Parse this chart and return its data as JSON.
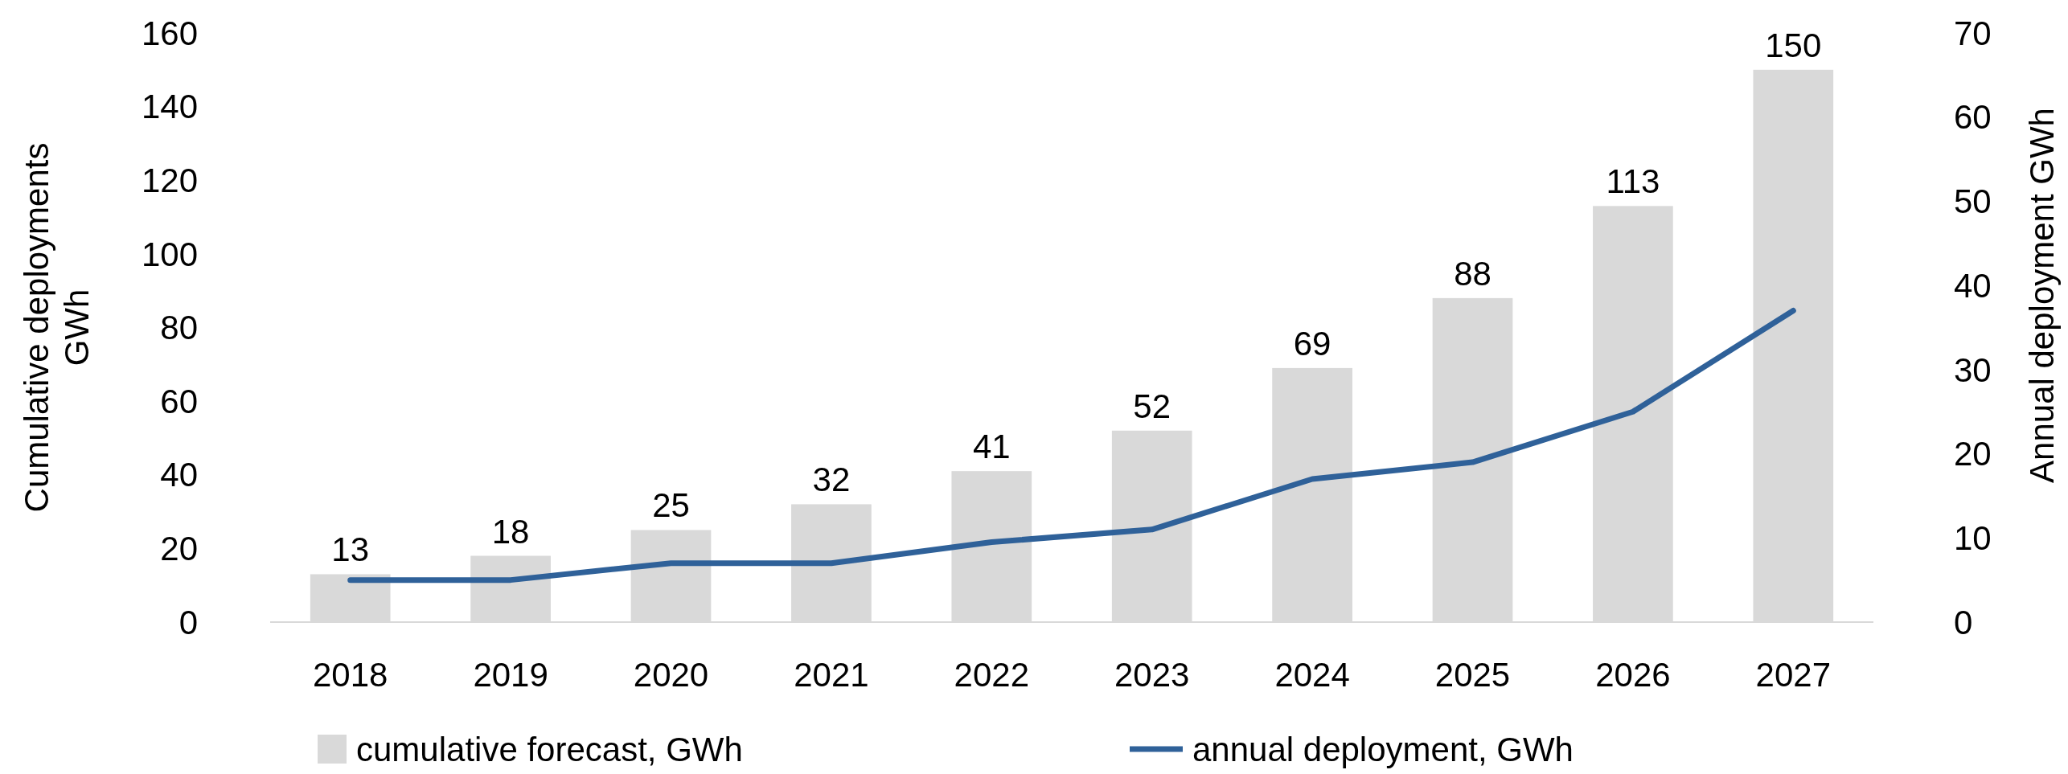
{
  "chart_data": {
    "type": "bar",
    "categories": [
      "2018",
      "2019",
      "2020",
      "2021",
      "2022",
      "2023",
      "2024",
      "2025",
      "2026",
      "2027"
    ],
    "ylabel": "Cumulative deployments GWh",
    "y2label": "Annual deployment GWh",
    "ylim": [
      0,
      160
    ],
    "yticks": [
      0,
      20,
      40,
      60,
      80,
      100,
      120,
      140,
      160
    ],
    "y2lim": [
      0,
      70
    ],
    "y2ticks": [
      0,
      10,
      20,
      30,
      40,
      50,
      60,
      70
    ],
    "legend": "bottom",
    "data_labels": true,
    "series": [
      {
        "name": "cumulative forecast, GWh",
        "color": "#d9d9d9",
        "values": [
          13,
          18,
          25,
          32,
          41,
          52,
          69,
          88,
          113,
          150
        ]
      },
      {
        "name": "annual deployment, GWh",
        "type": "line",
        "axis": "y2",
        "color": "#2f6199",
        "data_labels": false,
        "values": [
          5,
          5,
          7,
          7,
          9.5,
          11,
          17,
          19,
          25,
          37
        ]
      }
    ]
  }
}
